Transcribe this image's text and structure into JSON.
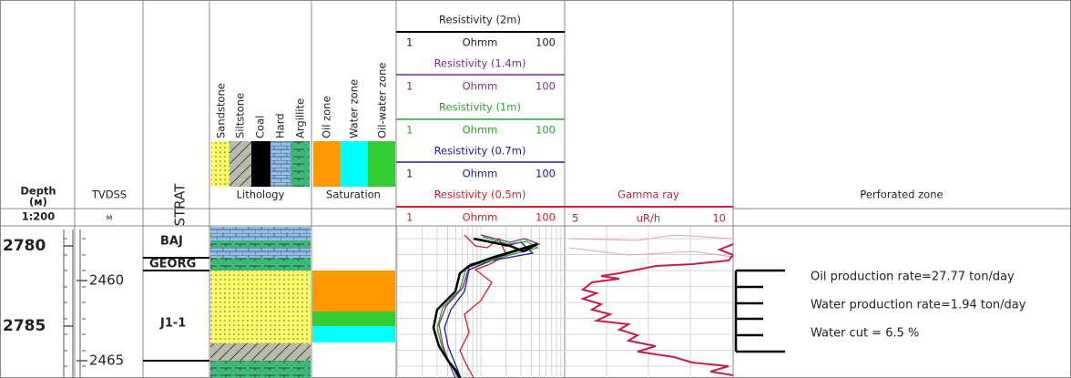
{
  "header": {
    "depth": {
      "title": "Depth",
      "unit": "(м)",
      "scale": "1:200"
    },
    "tvdss": {
      "title": "TVDSS",
      "unit": "м"
    },
    "strat": {
      "title": "STRAT"
    },
    "lithology": {
      "title": "Lithology",
      "legend": [
        "Sandstone",
        "Siltstone",
        "Coal",
        "Hard",
        "Argillite"
      ]
    },
    "saturation": {
      "title": "Saturation",
      "legend": [
        "Oil zone",
        "Water zone",
        "Oil-water zone"
      ]
    },
    "resistivity": [
      {
        "name": "Resistivity (2m)",
        "min": "1",
        "unit": "Ohmm",
        "max": "100"
      },
      {
        "name": "Resistivity (1.4m)",
        "min": "1",
        "unit": "Ohmm",
        "max": "100"
      },
      {
        "name": "Resistivity (1m)",
        "min": "1",
        "unit": "Ohmm",
        "max": "100"
      },
      {
        "name": "Resistivity (0.7m)",
        "min": "1",
        "unit": "Ohmm",
        "max": "100"
      },
      {
        "name": "Resistivity (0.5m)",
        "min": "1",
        "unit": "Ohmm",
        "max": "100"
      }
    ],
    "gamma": {
      "name": "Gamma ray",
      "min": "5",
      "unit": "uR/h",
      "max": "10"
    },
    "perforated": {
      "title": "Perforated zone"
    }
  },
  "depth_ticks": [
    "2780",
    "2785"
  ],
  "tvdss_ticks": [
    "2460",
    "2465"
  ],
  "strat_units": [
    "BAJ",
    "GEORG",
    "J1-1"
  ],
  "perforation_notes": [
    "Oil production rate=27.77 ton/day",
    "Water production rate=1.94 ton/day",
    "Water cut = 6.5 %"
  ]
}
